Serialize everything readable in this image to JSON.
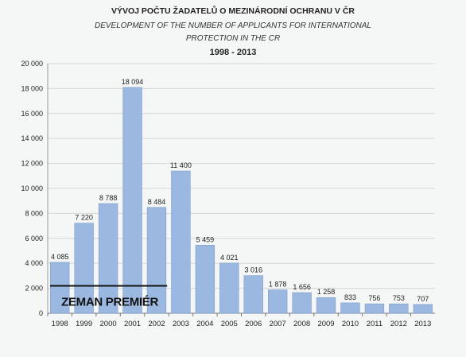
{
  "chart_data": {
    "type": "bar",
    "title": "VÝVOJ POČTU ŽADATELŮ O MEZINÁRODNÍ OCHRANU V ČR",
    "subtitle_lines": [
      "DEVELOPMENT OF THE NUMBER OF APPLICANTS FOR INTERNATIONAL",
      "PROTECTION IN THE CR"
    ],
    "period": "1998 - 2013",
    "categories": [
      "1998",
      "1999",
      "2000",
      "2001",
      "2002",
      "2003",
      "2004",
      "2005",
      "2006",
      "2007",
      "2008",
      "2009",
      "2010",
      "2011",
      "2012",
      "2013"
    ],
    "values": [
      4085,
      7220,
      8788,
      18094,
      8484,
      11400,
      5459,
      4021,
      3016,
      1878,
      1656,
      1258,
      833,
      756,
      753,
      707
    ],
    "value_labels": [
      "4 085",
      "7 220",
      "8 788",
      "18 094",
      "8 484",
      "11 400",
      "5 459",
      "4 021",
      "3 016",
      "1 878",
      "1 656",
      "1 258",
      "833",
      "756",
      "753",
      "707"
    ],
    "ylim": [
      0,
      20000
    ],
    "yticks": [
      0,
      2000,
      4000,
      6000,
      8000,
      10000,
      12000,
      14000,
      16000,
      18000,
      20000
    ],
    "ytick_labels": [
      "0",
      "2 000",
      "4 000",
      "6 000",
      "8 000",
      "10 000",
      "12 000",
      "14 000",
      "16 000",
      "18 000",
      "20 000"
    ],
    "grid": true,
    "annotation": {
      "text": "ZEMAN PREMIÉR",
      "line_level": 2200,
      "from_category": "1998",
      "to_category": "2002"
    },
    "colors": {
      "bar": "#9bb8e0",
      "bar_edge": "#7f9ccb",
      "grid": "#d6d6d6",
      "annotation_line": "#111111"
    }
  }
}
